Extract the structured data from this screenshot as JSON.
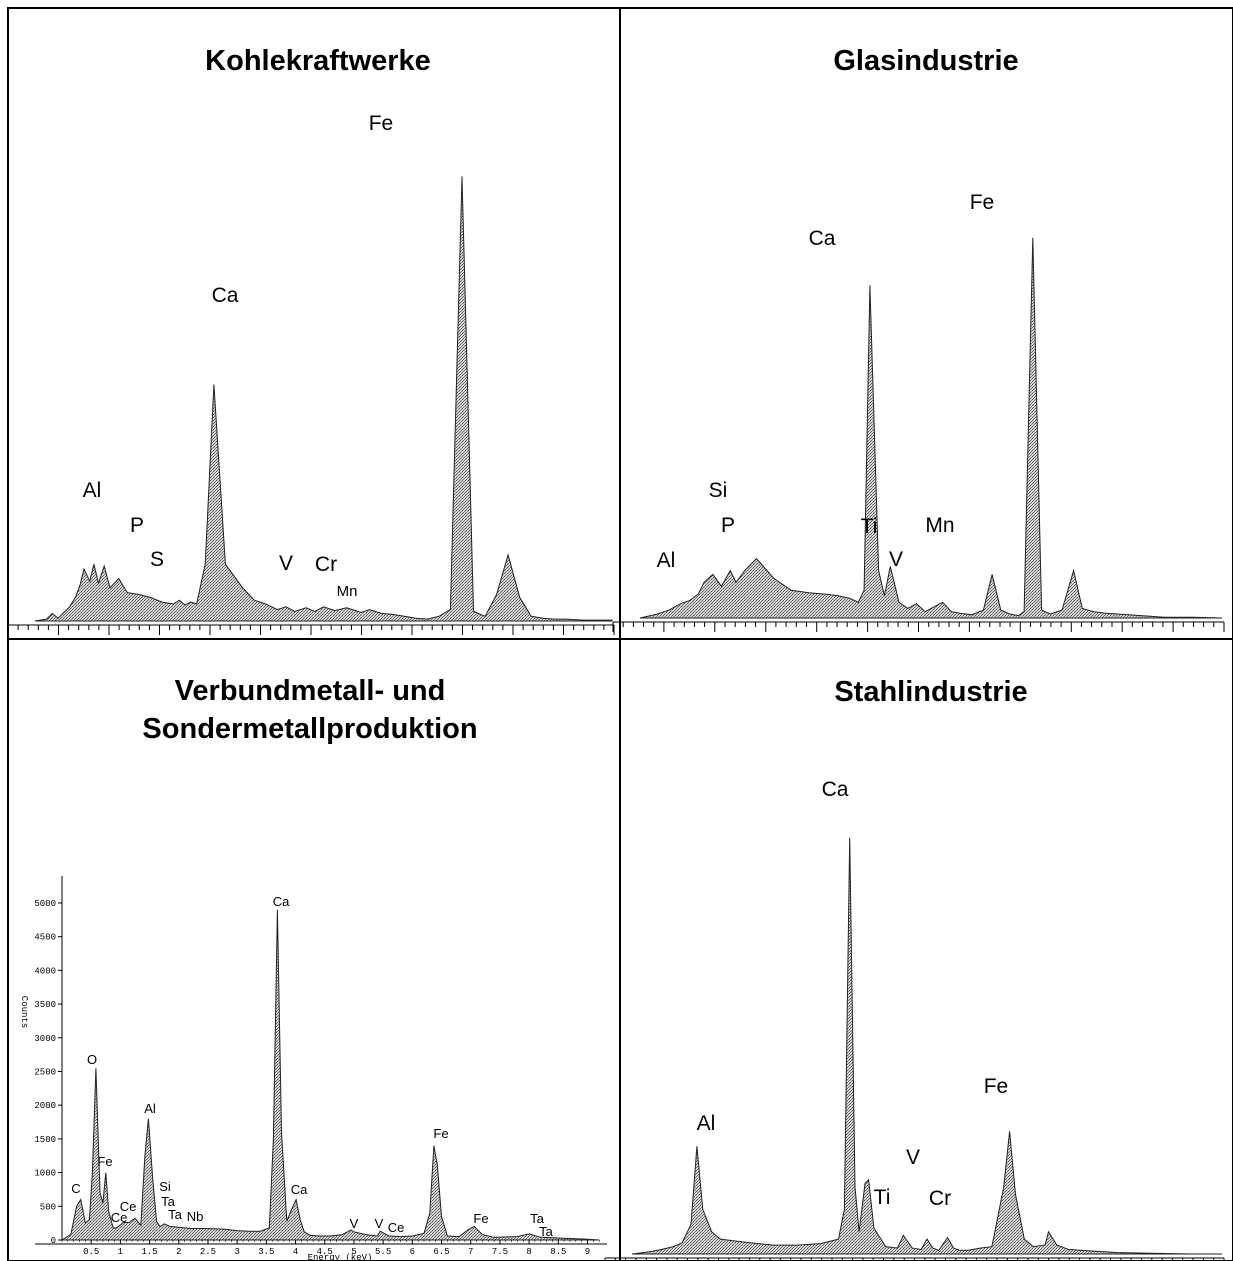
{
  "chart_data": [
    {
      "type": "area",
      "title": "Kohlekraftwerke",
      "x": [
        0.0,
        0.2,
        0.3,
        0.4,
        0.55,
        0.6,
        0.7,
        0.78,
        0.85,
        0.95,
        1.02,
        1.1,
        1.2,
        1.3,
        1.45,
        1.6,
        1.8,
        2.0,
        2.2,
        2.4,
        2.5,
        2.6,
        2.7,
        2.8,
        2.95,
        3.1,
        3.3,
        3.6,
        3.8,
        4.0,
        4.2,
        4.35,
        4.5,
        4.7,
        4.85,
        5.0,
        5.2,
        5.4,
        5.5,
        5.65,
        5.8,
        6.0,
        6.2,
        6.4,
        6.6,
        6.8,
        7.0,
        7.2,
        7.4,
        7.6,
        7.8,
        8.0,
        8.2,
        8.4,
        8.6,
        8.8,
        9.0,
        9.2,
        9.5,
        10.0
      ],
      "values": [
        0,
        2,
        8,
        3,
        12,
        15,
        25,
        38,
        55,
        42,
        60,
        40,
        58,
        35,
        45,
        30,
        28,
        25,
        20,
        18,
        22,
        17,
        20,
        18,
        60,
        250,
        60,
        35,
        22,
        18,
        12,
        15,
        10,
        14,
        10,
        15,
        11,
        14,
        12,
        9,
        12,
        8,
        7,
        5,
        3,
        2,
        5,
        12,
        470,
        10,
        5,
        28,
        70,
        25,
        5,
        3,
        2,
        2,
        1,
        1
      ],
      "peaks": [
        {
          "label": "Al",
          "x": 1.0
        },
        {
          "label": "P",
          "x": 1.45
        },
        {
          "label": "S",
          "x": 1.85
        },
        {
          "label": "Ca",
          "x": 3.7
        },
        {
          "label": "V",
          "x": 4.95
        },
        {
          "label": "Cr",
          "x": 5.4
        },
        {
          "label": "Mn",
          "x": 5.9
        },
        {
          "label": "Fe",
          "x": 6.4
        }
      ],
      "xlim": [
        0,
        10
      ],
      "ylim": [
        0,
        500
      ]
    },
    {
      "type": "area",
      "title": "Glasindustrie",
      "x": [
        0.0,
        0.3,
        0.5,
        0.7,
        0.85,
        1.0,
        1.1,
        1.25,
        1.4,
        1.55,
        1.65,
        1.8,
        2.0,
        2.3,
        2.6,
        2.9,
        3.2,
        3.4,
        3.6,
        3.75,
        3.85,
        3.95,
        4.1,
        4.2,
        4.3,
        4.45,
        4.6,
        4.75,
        4.9,
        5.05,
        5.2,
        5.35,
        5.5,
        5.7,
        5.9,
        6.05,
        6.2,
        6.35,
        6.5,
        6.6,
        6.75,
        6.9,
        7.05,
        7.25,
        7.45,
        7.6,
        7.8,
        8.0,
        8.2,
        8.4,
        8.6,
        8.8,
        9.0,
        9.5,
        10.0
      ],
      "values": [
        0,
        5,
        10,
        18,
        22,
        30,
        45,
        55,
        40,
        60,
        45,
        60,
        75,
        50,
        35,
        32,
        30,
        28,
        25,
        20,
        35,
        420,
        60,
        28,
        65,
        20,
        12,
        18,
        8,
        14,
        20,
        8,
        6,
        4,
        10,
        55,
        10,
        5,
        3,
        8,
        480,
        10,
        5,
        10,
        60,
        12,
        8,
        6,
        5,
        4,
        3,
        2,
        1,
        1,
        0
      ],
      "peaks": [
        {
          "label": "Al",
          "x": 0.9
        },
        {
          "label": "Si",
          "x": 1.5
        },
        {
          "label": "P",
          "x": 1.7
        },
        {
          "label": "Ca",
          "x": 3.7
        },
        {
          "label": "Ti",
          "x": 4.5
        },
        {
          "label": "V",
          "x": 4.95
        },
        {
          "label": "Mn",
          "x": 5.9
        },
        {
          "label": "Fe",
          "x": 6.4
        }
      ],
      "xlim": [
        0,
        10
      ],
      "ylim": [
        0,
        500
      ]
    },
    {
      "type": "area",
      "title": "Verbundmetall- und",
      "subtitle": "Sondermetallproduktion",
      "ylabel": "Counts",
      "xlabel": "Energy (keV)",
      "x": [
        0.0,
        0.15,
        0.25,
        0.32,
        0.4,
        0.47,
        0.52,
        0.58,
        0.65,
        0.7,
        0.75,
        0.8,
        0.88,
        0.95,
        1.05,
        1.15,
        1.25,
        1.35,
        1.42,
        1.48,
        1.55,
        1.62,
        1.68,
        1.75,
        1.85,
        2.0,
        2.2,
        2.5,
        2.8,
        3.0,
        3.2,
        3.4,
        3.55,
        3.62,
        3.69,
        3.76,
        3.85,
        3.93,
        4.01,
        4.08,
        4.15,
        4.25,
        4.4,
        4.6,
        4.8,
        4.95,
        5.0,
        5.2,
        5.4,
        5.45,
        5.6,
        5.8,
        6.0,
        6.2,
        6.3,
        6.37,
        6.43,
        6.5,
        6.6,
        6.8,
        6.95,
        7.06,
        7.2,
        7.4,
        7.8,
        8.0,
        8.2,
        8.5,
        8.8,
        9.0,
        9.2
      ],
      "values": [
        0,
        80,
        500,
        600,
        250,
        300,
        1000,
        2550,
        700,
        550,
        1000,
        420,
        170,
        190,
        260,
        260,
        320,
        220,
        1250,
        1800,
        950,
        270,
        200,
        240,
        200,
        190,
        170,
        170,
        160,
        140,
        130,
        130,
        180,
        1500,
        4900,
        1600,
        280,
        450,
        600,
        300,
        120,
        70,
        60,
        60,
        80,
        150,
        120,
        80,
        60,
        130,
        60,
        50,
        60,
        100,
        400,
        1400,
        1100,
        350,
        60,
        50,
        150,
        200,
        80,
        40,
        50,
        90,
        40,
        30,
        20,
        10,
        0
      ],
      "peaks": [
        {
          "label": "C",
          "x": 0.27
        },
        {
          "label": "O",
          "x": 0.53
        },
        {
          "label": "Fe",
          "x": 0.71
        },
        {
          "label": "Ce",
          "x": 0.88
        },
        {
          "label": "Ce",
          "x": 1.05
        },
        {
          "label": "Al",
          "x": 1.49
        },
        {
          "label": "Si",
          "x": 1.74
        },
        {
          "label": "Ta",
          "x": 1.71
        },
        {
          "label": "Ta",
          "x": 1.71
        },
        {
          "label": "Nb",
          "x": 2.17
        },
        {
          "label": "Ca",
          "x": 3.69
        },
        {
          "label": "Ca",
          "x": 4.01
        },
        {
          "label": "V",
          "x": 4.95
        },
        {
          "label": "V",
          "x": 5.43
        },
        {
          "label": "Ce",
          "x": 5.6
        },
        {
          "label": "Fe",
          "x": 6.4
        },
        {
          "label": "Fe",
          "x": 7.06
        },
        {
          "label": "Ta",
          "x": 8.15
        },
        {
          "label": "Ta",
          "x": 8.15
        }
      ],
      "xticks": [
        "0.5",
        "1",
        "1.5",
        "2",
        "2.5",
        "3",
        "3.5",
        "4",
        "4.5",
        "5",
        "5.5",
        "6",
        "6.5",
        "7",
        "7.5",
        "8",
        "8.5",
        "9"
      ],
      "yticks": [
        "0",
        "500",
        "1000",
        "1500",
        "2000",
        "2500",
        "3000",
        "3500",
        "4000",
        "4500",
        "5000"
      ],
      "xlim": [
        0,
        9.3
      ],
      "ylim": [
        0,
        5400
      ]
    },
    {
      "type": "area",
      "title": "Stahlindustrie",
      "x": [
        0.0,
        0.3,
        0.5,
        0.7,
        0.85,
        1.0,
        1.1,
        1.2,
        1.35,
        1.5,
        1.7,
        2.0,
        2.4,
        2.8,
        3.2,
        3.5,
        3.6,
        3.69,
        3.78,
        3.85,
        3.95,
        4.01,
        4.1,
        4.3,
        4.5,
        4.6,
        4.75,
        4.9,
        5.0,
        5.1,
        5.2,
        5.35,
        5.45,
        5.55,
        5.7,
        5.9,
        6.1,
        6.3,
        6.4,
        6.5,
        6.65,
        6.8,
        7.0,
        7.06,
        7.2,
        7.4,
        7.8,
        8.2,
        8.8,
        9.5,
        10.0
      ],
      "values": [
        0,
        3,
        6,
        10,
        15,
        40,
        145,
        60,
        30,
        20,
        18,
        15,
        12,
        12,
        14,
        20,
        60,
        560,
        90,
        30,
        95,
        100,
        35,
        10,
        8,
        25,
        8,
        6,
        20,
        8,
        5,
        22,
        8,
        5,
        5,
        8,
        10,
        90,
        165,
        80,
        20,
        10,
        12,
        30,
        12,
        6,
        4,
        2,
        1,
        0,
        0
      ],
      "peaks": [
        {
          "label": "Al",
          "x": 1.1
        },
        {
          "label": "Ca",
          "x": 3.69
        },
        {
          "label": "Ti",
          "x": 4.6
        },
        {
          "label": "V",
          "x": 4.95
        },
        {
          "label": "Cr",
          "x": 5.35
        },
        {
          "label": "Fe",
          "x": 6.4
        }
      ],
      "xlim": [
        0,
        10
      ],
      "ylim": [
        0,
        600
      ]
    }
  ],
  "styles": {
    "fill": "#b8b8b8",
    "stroke": "#222222",
    "frame": "#000000"
  }
}
